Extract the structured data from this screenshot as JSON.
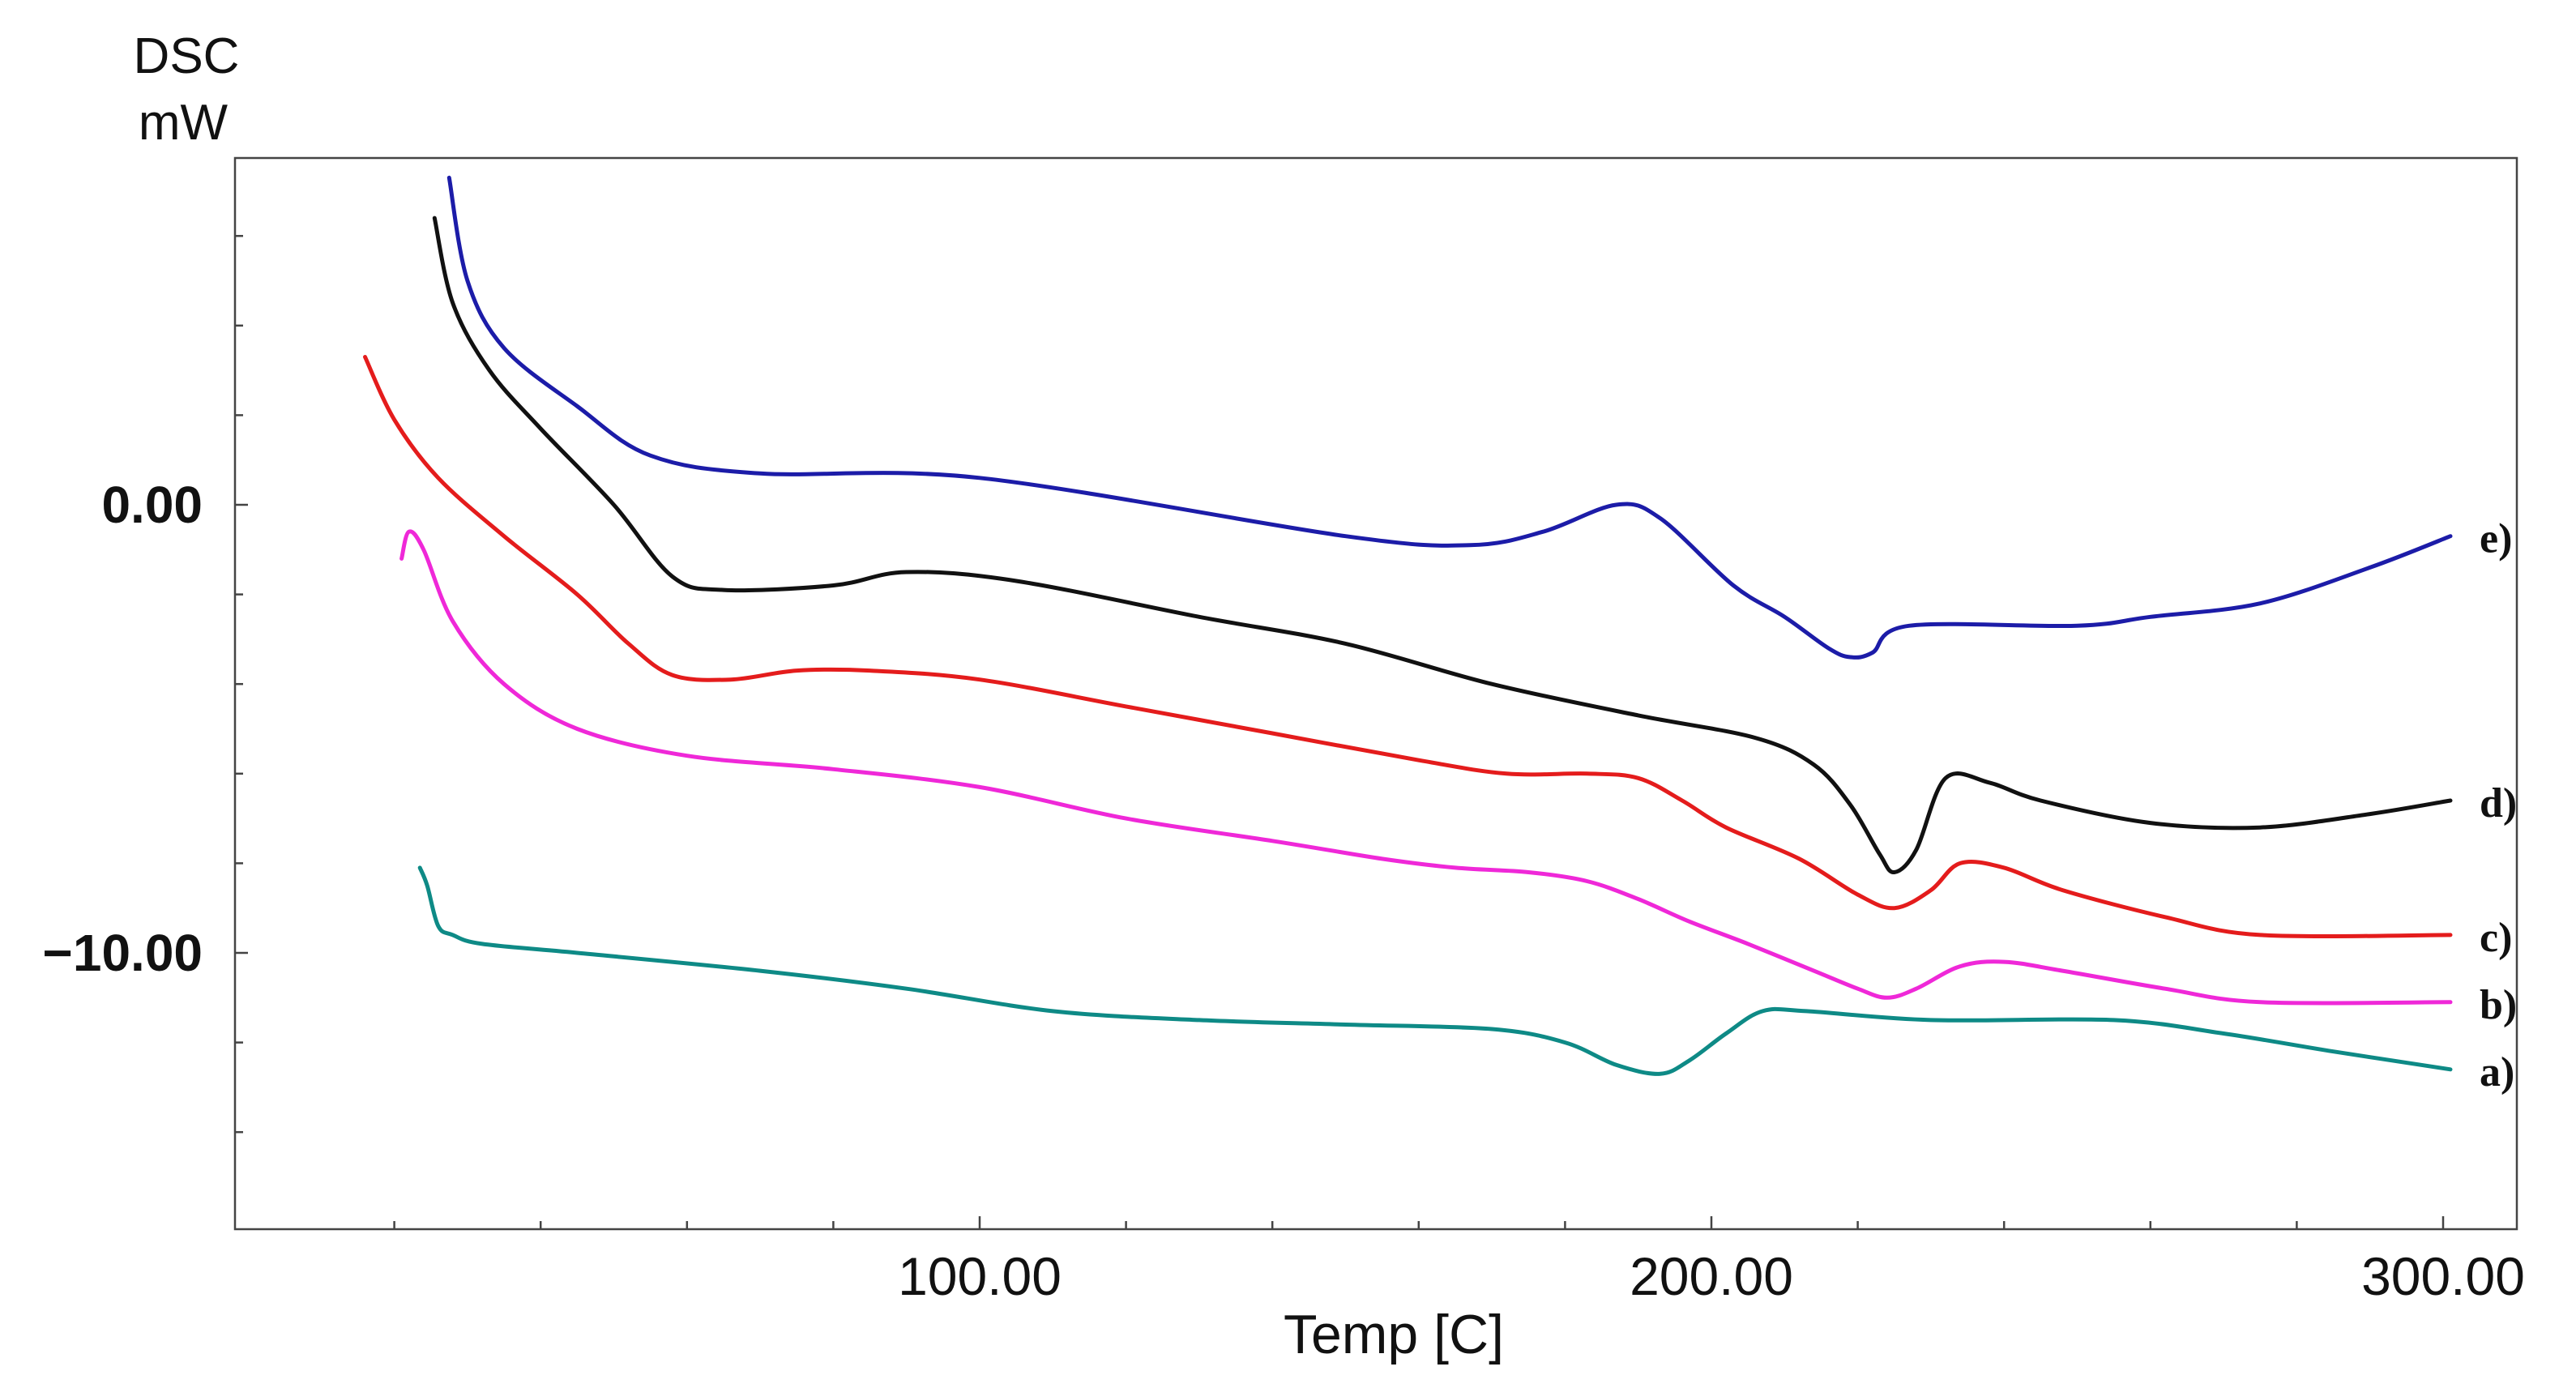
{
  "chart_data": {
    "type": "line",
    "ylabel_line1": "DSC",
    "ylabel_line2": "mW",
    "xlabel": "Temp  [C]",
    "xlim": [
      0,
      310
    ],
    "ylim": [
      -16.5,
      7.5
    ],
    "x_ticks": [
      {
        "value": 100,
        "label": "100.00"
      },
      {
        "value": 200,
        "label": "200.00"
      },
      {
        "value": 300,
        "label": "300.00"
      }
    ],
    "y_ticks": [
      {
        "value": 0,
        "label": "0.00"
      },
      {
        "value": -10,
        "label": "−10.00"
      }
    ],
    "series": [
      {
        "name": "e)",
        "color": "#1c1ca8",
        "points": [
          [
            27.5,
            7.3
          ],
          [
            30,
            5
          ],
          [
            35,
            3.5
          ],
          [
            45,
            2.2
          ],
          [
            55,
            1.1
          ],
          [
            70,
            0.7
          ],
          [
            100,
            0.6
          ],
          [
            150,
            -0.7
          ],
          [
            167,
            -0.9
          ],
          [
            177,
            -0.6
          ],
          [
            187,
            0
          ],
          [
            193,
            -0.3
          ],
          [
            203,
            -1.8
          ],
          [
            210,
            -2.5
          ],
          [
            216,
            -3.2
          ],
          [
            219,
            -3.4
          ],
          [
            222,
            -3.3
          ],
          [
            227,
            -2.7
          ],
          [
            250,
            -2.7
          ],
          [
            260,
            -2.5
          ],
          [
            275,
            -2.2
          ],
          [
            290,
            -1.4
          ],
          [
            301,
            -0.7
          ]
        ]
      },
      {
        "name": "d)",
        "color": "#111111",
        "points": [
          [
            25.5,
            6.4
          ],
          [
            28,
            4.5
          ],
          [
            33,
            3
          ],
          [
            40,
            1.7
          ],
          [
            50,
            0
          ],
          [
            58,
            -1.6
          ],
          [
            65,
            -1.9
          ],
          [
            80,
            -1.8
          ],
          [
            90,
            -1.5
          ],
          [
            105,
            -1.7
          ],
          [
            130,
            -2.5
          ],
          [
            150,
            -3.1
          ],
          [
            170,
            -4
          ],
          [
            190,
            -4.7
          ],
          [
            206,
            -5.2
          ],
          [
            214,
            -5.8
          ],
          [
            219,
            -6.7
          ],
          [
            223,
            -7.8
          ],
          [
            225,
            -8.2
          ],
          [
            228,
            -7.7
          ],
          [
            232,
            -6.1
          ],
          [
            238,
            -6.2
          ],
          [
            245,
            -6.6
          ],
          [
            260,
            -7.1
          ],
          [
            275,
            -7.2
          ],
          [
            290,
            -6.9
          ],
          [
            301,
            -6.6
          ]
        ]
      },
      {
        "name": "c)",
        "color": "#e41c1c",
        "points": [
          [
            16,
            3.3
          ],
          [
            20,
            1.9
          ],
          [
            26,
            0.6
          ],
          [
            35,
            -0.7
          ],
          [
            45,
            -2
          ],
          [
            52,
            -3.1
          ],
          [
            58,
            -3.8
          ],
          [
            66,
            -3.9
          ],
          [
            75,
            -3.7
          ],
          [
            85,
            -3.7
          ],
          [
            100,
            -3.9
          ],
          [
            120,
            -4.5
          ],
          [
            140,
            -5.1
          ],
          [
            160,
            -5.7
          ],
          [
            172,
            -6
          ],
          [
            183,
            -6
          ],
          [
            190,
            -6.1
          ],
          [
            196,
            -6.6
          ],
          [
            202,
            -7.2
          ],
          [
            212,
            -7.9
          ],
          [
            220,
            -8.7
          ],
          [
            225,
            -9
          ],
          [
            230,
            -8.6
          ],
          [
            234,
            -8
          ],
          [
            240,
            -8.1
          ],
          [
            248,
            -8.6
          ],
          [
            262,
            -9.2
          ],
          [
            275,
            -9.6
          ],
          [
            301,
            -9.6
          ]
        ]
      },
      {
        "name": "b)",
        "color": "#ef28d8",
        "points": [
          [
            21,
            -1.2
          ],
          [
            22,
            -0.6
          ],
          [
            24,
            -1
          ],
          [
            28,
            -2.6
          ],
          [
            35,
            -4
          ],
          [
            45,
            -5
          ],
          [
            60,
            -5.6
          ],
          [
            80,
            -5.9
          ],
          [
            100,
            -6.3
          ],
          [
            120,
            -7
          ],
          [
            140,
            -7.5
          ],
          [
            155,
            -7.9
          ],
          [
            165,
            -8.1
          ],
          [
            175,
            -8.2
          ],
          [
            183,
            -8.4
          ],
          [
            190,
            -8.8
          ],
          [
            197,
            -9.3
          ],
          [
            205,
            -9.8
          ],
          [
            214,
            -10.4
          ],
          [
            220,
            -10.8
          ],
          [
            224,
            -11
          ],
          [
            228,
            -10.8
          ],
          [
            234,
            -10.3
          ],
          [
            240,
            -10.2
          ],
          [
            248,
            -10.4
          ],
          [
            262,
            -10.8
          ],
          [
            275,
            -11.1
          ],
          [
            301,
            -11.1
          ]
        ]
      },
      {
        "name": "a)",
        "color": "#0e8a86",
        "points": [
          [
            23.5,
            -8.1
          ],
          [
            24.5,
            -8.5
          ],
          [
            26,
            -9.4
          ],
          [
            28,
            -9.6
          ],
          [
            32,
            -9.8
          ],
          [
            45,
            -10
          ],
          [
            70,
            -10.4
          ],
          [
            90,
            -10.8
          ],
          [
            110,
            -11.3
          ],
          [
            130,
            -11.5
          ],
          [
            150,
            -11.6
          ],
          [
            170,
            -11.7
          ],
          [
            180,
            -12
          ],
          [
            187,
            -12.5
          ],
          [
            193,
            -12.7
          ],
          [
            197,
            -12.4
          ],
          [
            202,
            -11.8
          ],
          [
            207,
            -11.3
          ],
          [
            213,
            -11.3
          ],
          [
            230,
            -11.5
          ],
          [
            255,
            -11.5
          ],
          [
            270,
            -11.8
          ],
          [
            285,
            -12.2
          ],
          [
            301,
            -12.6
          ]
        ]
      }
    ]
  }
}
